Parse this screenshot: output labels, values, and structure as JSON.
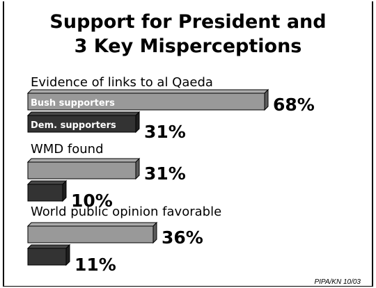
{
  "chart_data": {
    "type": "bar",
    "title_lines": [
      "Support for President and",
      "3 Key Misperceptions"
    ],
    "categories": [
      "Evidence of links to al Qaeda",
      "WMD found",
      "World public opinion favorable"
    ],
    "series": [
      {
        "name": "Bush supporters",
        "values": [
          68,
          31,
          36
        ],
        "color": "#999999"
      },
      {
        "name": "Dem. supporters",
        "values": [
          31,
          10,
          11
        ],
        "color": "#333333"
      }
    ],
    "value_labels": [
      [
        "68%",
        "31%",
        "36%"
      ],
      [
        "31%",
        "10%",
        "11%"
      ]
    ],
    "unit": "%",
    "orientation": "horizontal",
    "style": "3d",
    "legend": "inside first bar pair"
  },
  "source": "PIPA/KN 10/03"
}
